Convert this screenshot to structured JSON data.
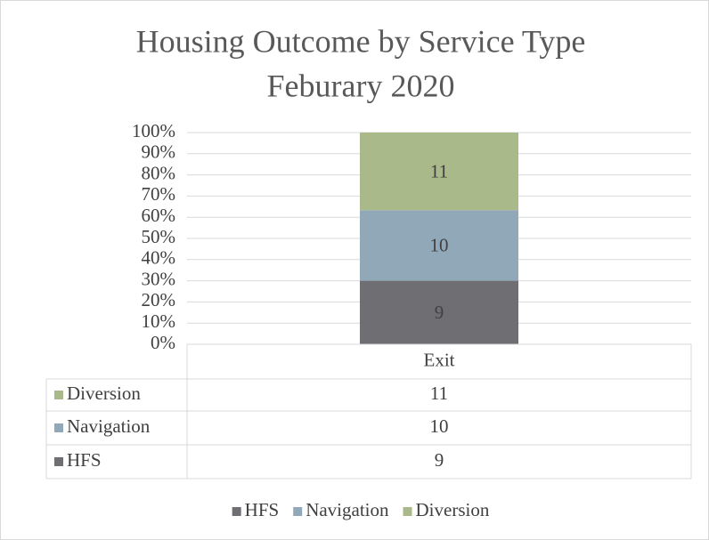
{
  "chart_data": {
    "type": "bar",
    "stack": "percent",
    "title": [
      "Housing Outcome by Service Type",
      "Feburary 2020"
    ],
    "categories": [
      "Exit"
    ],
    "series": [
      {
        "name": "HFS",
        "color": "#6f6e73",
        "values": [
          9
        ]
      },
      {
        "name": "Navigation",
        "color": "#91a8b8",
        "values": [
          10
        ]
      },
      {
        "name": "Diversion",
        "color": "#a9b98a",
        "values": [
          11
        ]
      }
    ],
    "ylim": [
      0,
      100
    ],
    "yticks": [
      {
        "value": 0,
        "label": "0%"
      },
      {
        "value": 10,
        "label": "10%"
      },
      {
        "value": 20,
        "label": "20%"
      },
      {
        "value": 30,
        "label": "30%"
      },
      {
        "value": 40,
        "label": "40%"
      },
      {
        "value": 50,
        "label": "50%"
      },
      {
        "value": 60,
        "label": "60%"
      },
      {
        "value": 70,
        "label": "70%"
      },
      {
        "value": 80,
        "label": "80%"
      },
      {
        "value": 90,
        "label": "90%"
      },
      {
        "value": 100,
        "label": "100%"
      }
    ],
    "grid": true,
    "data_table": true,
    "legend": "bottom"
  }
}
